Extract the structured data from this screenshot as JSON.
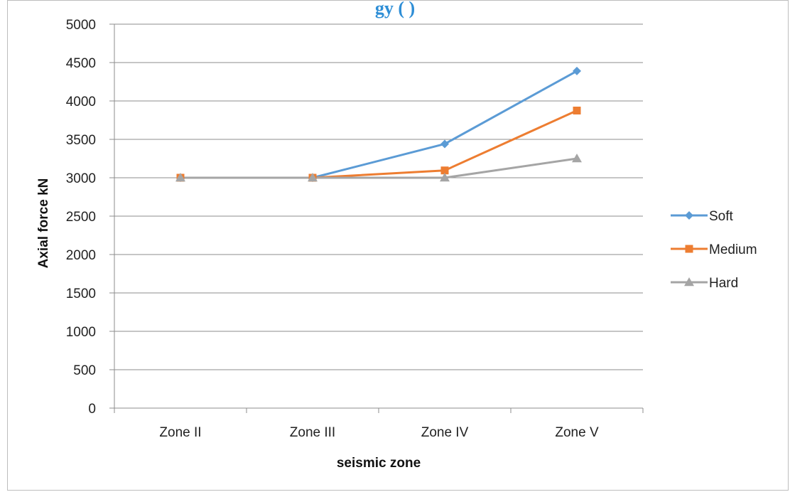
{
  "title_fragment": "gy (          )",
  "chart_data": {
    "type": "line",
    "categories": [
      "Zone II",
      "Zone III",
      "Zone IV",
      "Zone V"
    ],
    "series": [
      {
        "name": "Soft",
        "values": [
          3000,
          3000,
          3440,
          4390
        ],
        "color": "#5b9bd5",
        "marker": "diamond"
      },
      {
        "name": "Medium",
        "values": [
          3000,
          3000,
          3095,
          3875
        ],
        "color": "#ed7d31",
        "marker": "square"
      },
      {
        "name": "Hard",
        "values": [
          3000,
          3000,
          3000,
          3250
        ],
        "color": "#a5a5a5",
        "marker": "triangle"
      }
    ],
    "xlabel": "seismic zone",
    "ylabel": "Axial force kN",
    "ylim": [
      0,
      5000
    ],
    "yticks": [
      0,
      500,
      1000,
      1500,
      2000,
      2500,
      3000,
      3500,
      4000,
      4500,
      5000
    ],
    "grid": true,
    "legend_position": "right"
  }
}
